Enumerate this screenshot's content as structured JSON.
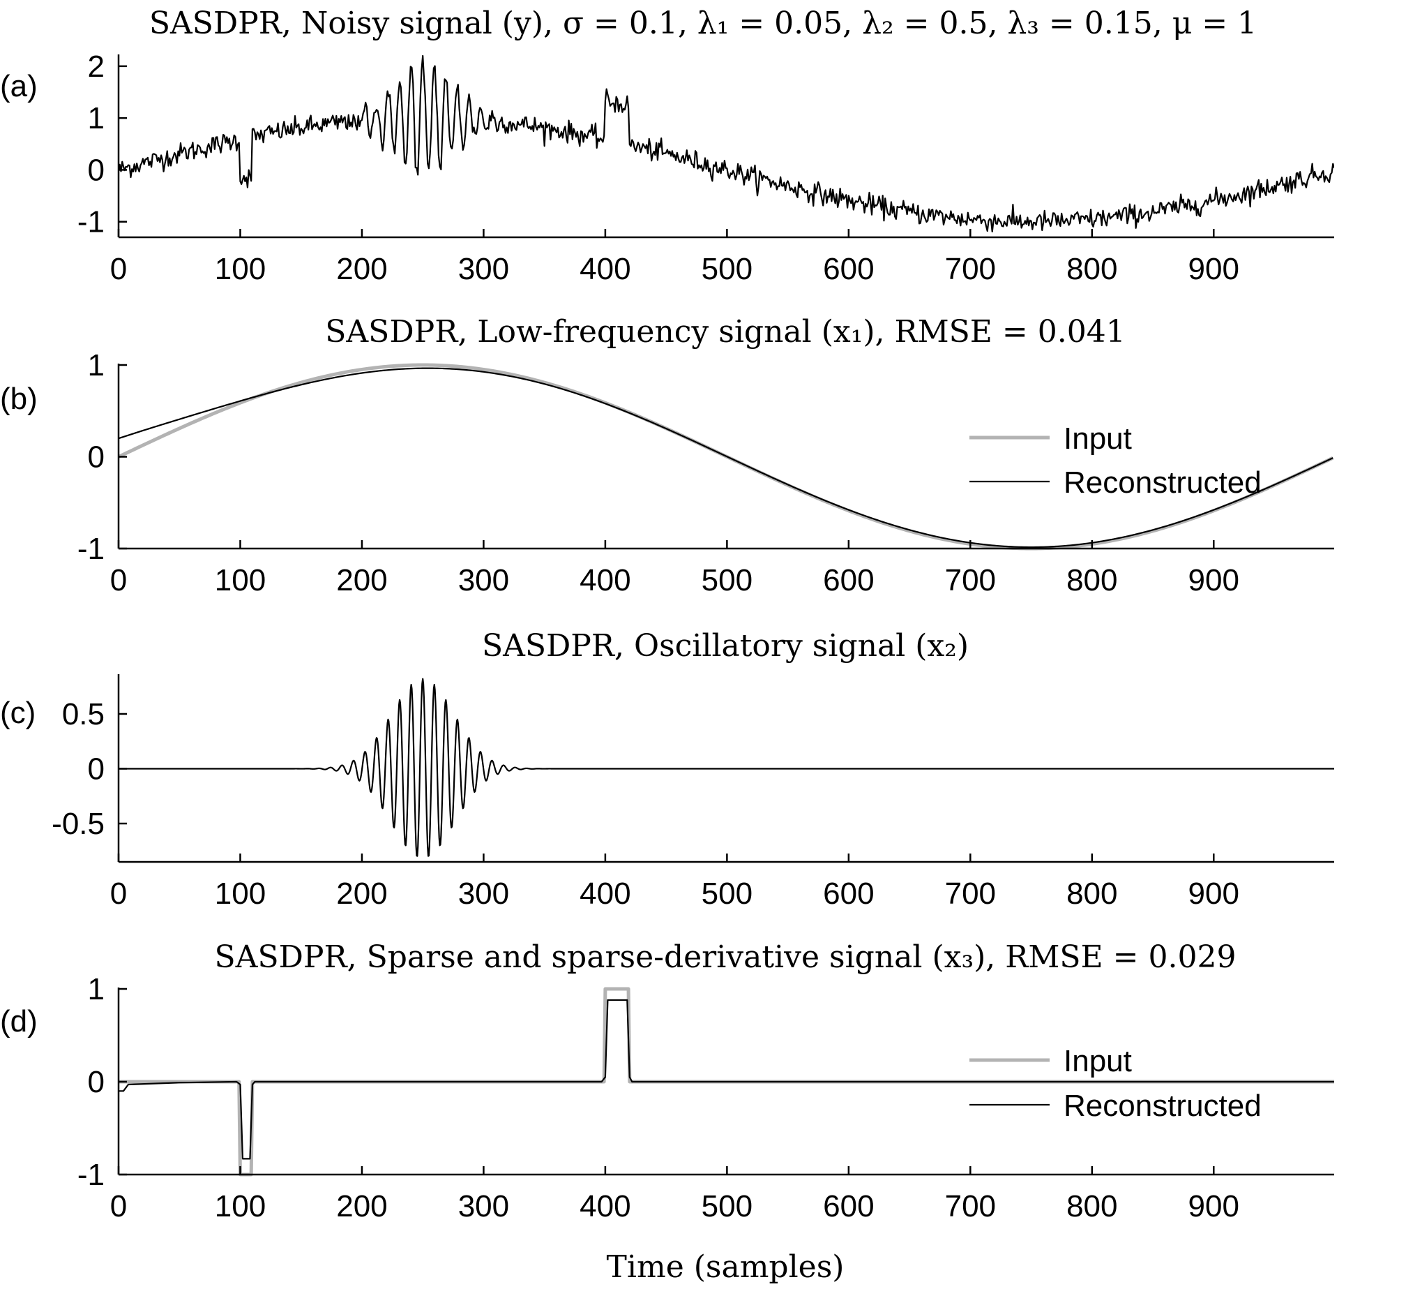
{
  "chart_data": [
    {
      "id": "a",
      "type": "line",
      "panel_label": "(a)",
      "title": "SASDPR, Noisy signal (y), σ = 0.1, λ₁ = 0.05, λ₂ = 0.5, λ₃ = 0.15, μ = 1",
      "xlim": [
        0,
        999
      ],
      "ylim": [
        -1.3,
        2.2
      ],
      "xticks": [
        0,
        100,
        200,
        300,
        400,
        500,
        600,
        700,
        800,
        900
      ],
      "yticks": [
        -1,
        0,
        1,
        2
      ],
      "ytick_labels": [
        "-1",
        "0",
        "1",
        "2"
      ],
      "series": [
        {
          "color": "#000000",
          "width": 2.2,
          "formula": "noisy",
          "noise_sigma": 0.1
        }
      ]
    },
    {
      "id": "b",
      "type": "line",
      "panel_label": "(b)",
      "title": "SASDPR, Low-frequency signal (x₁), RMSE = 0.041",
      "xlim": [
        0,
        999
      ],
      "ylim": [
        -1,
        1
      ],
      "xticks": [
        0,
        100,
        200,
        300,
        400,
        500,
        600,
        700,
        800,
        900
      ],
      "yticks": [
        -1,
        0,
        1
      ],
      "ytick_labels": [
        "-1",
        "0",
        "1"
      ],
      "legend": {
        "position": "right",
        "entries": [
          "Input",
          "Reconstructed"
        ]
      },
      "series": [
        {
          "name": "Input",
          "color": "#b3b3b3",
          "width": 5,
          "formula": "sin"
        },
        {
          "name": "Reconstructed",
          "color": "#000000",
          "width": 2.2,
          "formula": "sin_recon"
        }
      ]
    },
    {
      "id": "c",
      "type": "line",
      "panel_label": "(c)",
      "title": "SASDPR, Oscillatory signal (x₂)",
      "xlim": [
        0,
        999
      ],
      "ylim": [
        -0.85,
        0.85
      ],
      "xticks": [
        0,
        100,
        200,
        300,
        400,
        500,
        600,
        700,
        800,
        900
      ],
      "yticks": [
        -0.5,
        0,
        0.5
      ],
      "ytick_labels": [
        "-0.5",
        "0",
        "0.5"
      ],
      "series": [
        {
          "color": "#000000",
          "width": 2.2,
          "formula": "burst",
          "amplitude": 0.82,
          "center": 250,
          "period": 9.5
        }
      ]
    },
    {
      "id": "d",
      "type": "line",
      "panel_label": "(d)",
      "title": "SASDPR, Sparse and sparse-derivative signal (x₃), RMSE = 0.029",
      "xlim": [
        0,
        999
      ],
      "ylim": [
        -1,
        1
      ],
      "xticks": [
        0,
        100,
        200,
        300,
        400,
        500,
        600,
        700,
        800,
        900
      ],
      "yticks": [
        -1,
        0,
        1
      ],
      "ytick_labels": [
        "-1",
        "0",
        "1"
      ],
      "legend": {
        "position": "right",
        "entries": [
          "Input",
          "Reconstructed"
        ]
      },
      "series": [
        {
          "name": "Input",
          "color": "#b3b3b3",
          "width": 5,
          "points": [
            [
              0,
              0
            ],
            [
              99,
              0
            ],
            [
              100,
              -1
            ],
            [
              109,
              -1
            ],
            [
              110,
              0
            ],
            [
              399,
              0
            ],
            [
              400,
              1
            ],
            [
              419,
              1
            ],
            [
              420,
              0
            ],
            [
              999,
              0
            ]
          ]
        },
        {
          "name": "Reconstructed",
          "color": "#000000",
          "width": 2.2,
          "points": [
            [
              0,
              -0.1
            ],
            [
              4,
              -0.1
            ],
            [
              8,
              -0.03
            ],
            [
              50,
              -0.01
            ],
            [
              97,
              0
            ],
            [
              100,
              -0.03
            ],
            [
              102,
              -0.83
            ],
            [
              108,
              -0.83
            ],
            [
              110,
              -0.03
            ],
            [
              112,
              0
            ],
            [
              397,
              0
            ],
            [
              400,
              0.05
            ],
            [
              402,
              0.88
            ],
            [
              418,
              0.88
            ],
            [
              420,
              0.05
            ],
            [
              422,
              0
            ],
            [
              999,
              0
            ]
          ]
        }
      ]
    }
  ],
  "xlabel": "Time (samples)"
}
